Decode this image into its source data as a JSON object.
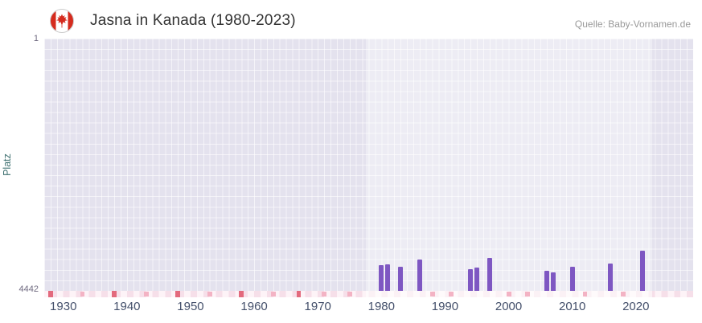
{
  "header": {
    "title": "Jasna in Kanada (1980-2023)",
    "source": "Quelle: Baby-Vornamen.de",
    "flag_icon": "canada-flag-icon"
  },
  "chart_data": {
    "type": "bar",
    "title": "Jasna in Kanada (1980-2023)",
    "xlabel": "",
    "ylabel": "Platz",
    "y_axis_inverted": true,
    "ylim": [
      1,
      4442
    ],
    "yticks": [
      "1",
      "4442"
    ],
    "xlim": [
      1927,
      2029
    ],
    "xticks": [
      1930,
      1940,
      1950,
      1960,
      1970,
      1980,
      1990,
      2000,
      2010,
      2020
    ],
    "highlight_range": [
      1977.5,
      2022.5
    ],
    "grid": true,
    "legend": "none",
    "series": [
      {
        "name": "Platz",
        "points": [
          {
            "year": 1980,
            "platz": 3990
          },
          {
            "year": 1981,
            "platz": 3975
          },
          {
            "year": 1983,
            "platz": 4015
          },
          {
            "year": 1986,
            "platz": 3890
          },
          {
            "year": 1994,
            "platz": 4060
          },
          {
            "year": 1995,
            "platz": 4030
          },
          {
            "year": 1997,
            "platz": 3860
          },
          {
            "year": 2006,
            "platz": 4090
          },
          {
            "year": 2007,
            "platz": 4110
          },
          {
            "year": 2010,
            "platz": 4015
          },
          {
            "year": 2016,
            "platz": 3960
          },
          {
            "year": 2021,
            "platz": 3730
          }
        ]
      }
    ],
    "no_rank_markers": {
      "strong_years": [
        1928,
        1938,
        1948,
        1958,
        1967
      ],
      "medium_years": [
        1933,
        1943,
        1953,
        1963,
        1971,
        1975,
        1988,
        1991,
        2000,
        2003,
        2012,
        2018
      ]
    },
    "colors": {
      "bar": "#7e57c2",
      "marker_strong": "#e36a7d",
      "marker_medium": "#f3b3c4",
      "strip_base": "#f6dfe9",
      "strip_alt": "#fdf3f7",
      "strip_highlight_overlay": "rgba(255,255,255,0.55)",
      "plot_bg": "#e4e2ee",
      "highlight_overlay": "rgba(255,255,255,0.35)",
      "grid": "rgba(255,255,255,0.6)",
      "flag_red": "#d52b1e"
    }
  }
}
